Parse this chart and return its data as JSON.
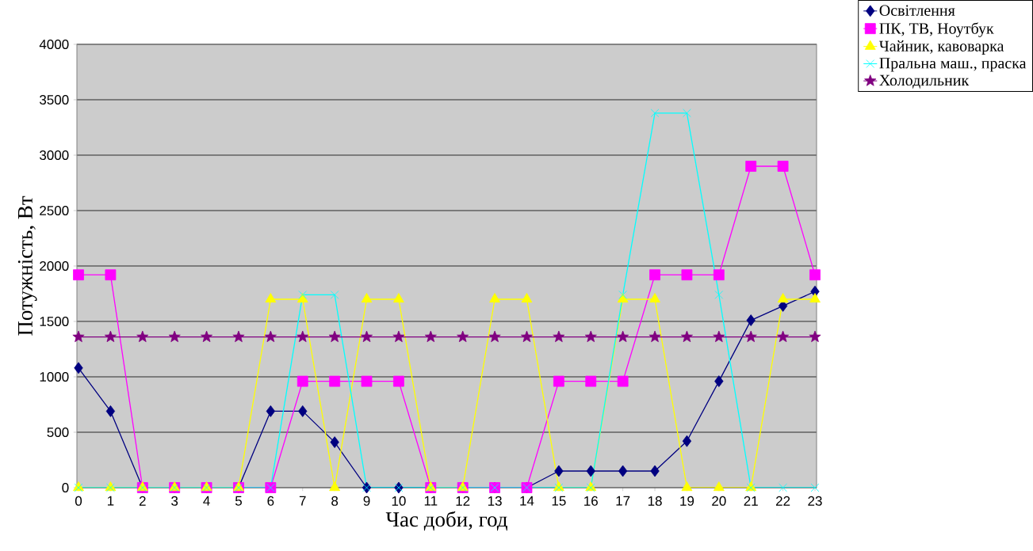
{
  "chart_data": {
    "type": "line",
    "xlabel": "Час доби, год",
    "ylabel": "Потужність, Вт",
    "categories": [
      "0",
      "1",
      "2",
      "3",
      "4",
      "5",
      "6",
      "7",
      "8",
      "9",
      "10",
      "11",
      "12",
      "13",
      "14",
      "15",
      "16",
      "17",
      "18",
      "19",
      "20",
      "21",
      "22",
      "23"
    ],
    "ylim": [
      0,
      4000
    ],
    "yticks": [
      0,
      500,
      1000,
      1500,
      2000,
      2500,
      3000,
      3500,
      4000
    ],
    "grid": "y",
    "legend": "top right",
    "line_style": "solid",
    "series": [
      {
        "name": "Освітлення",
        "color": "#000080",
        "marker": "diamond",
        "values": [
          1080,
          690,
          0,
          0,
          0,
          0,
          690,
          690,
          410,
          0,
          0,
          0,
          0,
          0,
          0,
          150,
          150,
          150,
          150,
          420,
          960,
          1510,
          1640,
          1770
        ]
      },
      {
        "name": "ПК, ТВ, Ноутбук",
        "color": "#ff00ff",
        "marker": "square",
        "values": [
          1920,
          1920,
          0,
          0,
          0,
          0,
          0,
          960,
          960,
          960,
          960,
          0,
          0,
          0,
          0,
          960,
          960,
          960,
          1920,
          1920,
          1920,
          2900,
          2900,
          1920
        ]
      },
      {
        "name": "Чайник, кавоварка",
        "color": "#ffff00",
        "marker": "triangle",
        "values": [
          0,
          0,
          0,
          0,
          0,
          0,
          1700,
          1700,
          0,
          1700,
          1700,
          0,
          0,
          1700,
          1700,
          0,
          0,
          1700,
          1700,
          0,
          0,
          0,
          1700,
          1700
        ]
      },
      {
        "name": "Пральна маш., праска",
        "color": "#00ffff",
        "marker": "cross",
        "values": [
          0,
          0,
          0,
          0,
          0,
          0,
          0,
          1740,
          1740,
          0,
          0,
          0,
          0,
          0,
          0,
          0,
          0,
          1740,
          3380,
          3380,
          1740,
          0,
          0,
          0
        ]
      },
      {
        "name": "Холодильник",
        "color": "#800080",
        "marker": "star",
        "values": [
          1360,
          1360,
          1360,
          1360,
          1360,
          1360,
          1360,
          1360,
          1360,
          1360,
          1360,
          1360,
          1360,
          1360,
          1360,
          1360,
          1360,
          1360,
          1360,
          1360,
          1360,
          1360,
          1360,
          1360
        ]
      }
    ]
  }
}
